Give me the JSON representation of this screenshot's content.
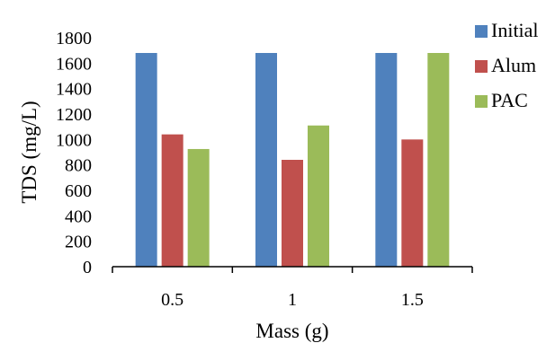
{
  "chart_data": {
    "type": "bar",
    "title": "",
    "xlabel": "Mass (g)",
    "ylabel": "TDS (mg/L)",
    "categories": [
      "0.5",
      "1",
      "1.5"
    ],
    "ylim": [
      0,
      1800
    ],
    "yticks": [
      0,
      200,
      400,
      600,
      800,
      1000,
      1200,
      1400,
      1600,
      1800
    ],
    "grid": false,
    "legend_position": "right",
    "series": [
      {
        "name": "Initial",
        "color": "#4F81BD",
        "values": [
          1680,
          1680,
          1680
        ]
      },
      {
        "name": "Alum",
        "color": "#C0504D",
        "values": [
          1040,
          840,
          1000
        ]
      },
      {
        "name": "PAC",
        "color": "#9BBB59",
        "values": [
          925,
          1110,
          1680
        ]
      }
    ]
  }
}
